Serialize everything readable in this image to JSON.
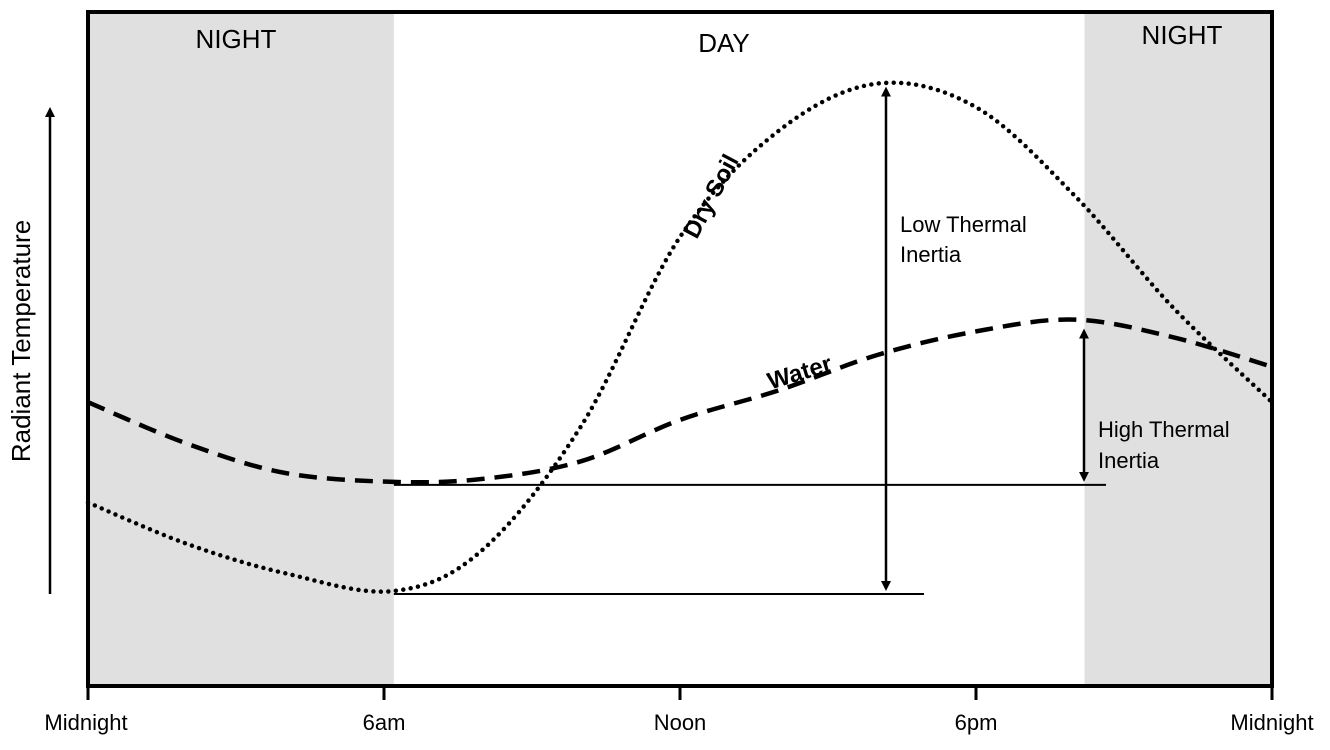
{
  "chart_data": {
    "type": "line",
    "title": "",
    "ylabel": "Radiant Temperature",
    "xlabel": "",
    "x_ticks": [
      "Midnight",
      "6am",
      "Noon",
      "6pm",
      "Midnight"
    ],
    "x_range_hours": [
      0,
      24
    ],
    "periods": [
      {
        "label": "NIGHT",
        "start": 0,
        "end": 6.2
      },
      {
        "label": "DAY",
        "start": 6.2,
        "end": 20.2
      },
      {
        "label": "NIGHT",
        "start": 20.2,
        "end": 24
      }
    ],
    "series": [
      {
        "name": "Dry Soil",
        "style": "dotted",
        "x": [
          0,
          2,
          4,
          6.2,
          8,
          10,
          12,
          14,
          16,
          18,
          20,
          22,
          24
        ],
        "y": [
          0.25,
          0.18,
          0.13,
          0.1,
          0.17,
          0.38,
          0.7,
          0.88,
          0.96,
          0.92,
          0.77,
          0.58,
          0.42
        ]
      },
      {
        "name": "Water",
        "style": "dashed",
        "x": [
          0,
          2,
          4,
          6.2,
          8,
          10,
          12,
          14,
          16,
          18,
          20,
          22,
          24
        ],
        "y": [
          0.42,
          0.35,
          0.3,
          0.285,
          0.29,
          0.32,
          0.39,
          0.44,
          0.5,
          0.54,
          0.56,
          0.53,
          0.48
        ]
      }
    ],
    "annotations": [
      {
        "text_lines": [
          "Low Thermal",
          "Inertia"
        ],
        "type": "double-arrow",
        "series": "Dry Soil"
      },
      {
        "text_lines": [
          "High Thermal",
          "Inertia"
        ],
        "type": "double-arrow",
        "series": "Water"
      }
    ],
    "colors": {
      "night_shade": "#e0e0e0",
      "ink": "#000000"
    }
  }
}
